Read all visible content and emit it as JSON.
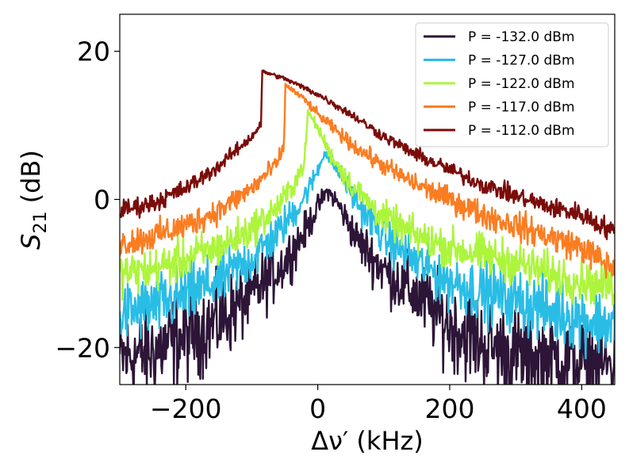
{
  "chart_data": {
    "type": "line",
    "title": "",
    "xlabel": "Δν′ (kHz)",
    "ylabel": "S21 (dB)",
    "ylabel_main": "S",
    "ylabel_sub": "21",
    "ylabel_rest": " (dB)",
    "xlim": [
      -300,
      450
    ],
    "ylim": [
      -25,
      25
    ],
    "xticks": [
      -200,
      0,
      200,
      400
    ],
    "yticks": [
      -20,
      0,
      20
    ],
    "xtick_labels": [
      "−200",
      "0",
      "200",
      "400"
    ],
    "ytick_labels": [
      "−20",
      "0",
      "20"
    ],
    "grid": false,
    "legend_position": "top-right",
    "series": [
      {
        "name": "P = -132.0 dBm",
        "color": "#2d1537",
        "noise": 2.2,
        "x": [
          -300,
          -250,
          -200,
          -150,
          -100,
          -50,
          -20,
          0,
          15,
          30,
          60,
          100,
          150,
          200,
          250,
          300,
          350,
          400,
          450
        ],
        "y": [
          -21.5,
          -20.5,
          -18.5,
          -16.5,
          -13,
          -8.5,
          -4.5,
          -1,
          1.2,
          -0.5,
          -5.5,
          -9.5,
          -13,
          -17,
          -19.5,
          -21,
          -21.5,
          -22,
          -22.5
        ]
      },
      {
        "name": "P = -127.0 dBm",
        "color": "#29bde6",
        "noise": 1.5,
        "x": [
          -300,
          -250,
          -200,
          -150,
          -100,
          -60,
          -30,
          -10,
          5,
          10,
          30,
          60,
          100,
          150,
          200,
          250,
          300,
          350,
          400,
          450
        ],
        "y": [
          -15.5,
          -14.5,
          -13,
          -11,
          -8,
          -4.5,
          -1,
          2,
          5,
          6.5,
          4,
          -0.5,
          -5,
          -8.5,
          -11,
          -12.5,
          -13.5,
          -15,
          -16,
          -17
        ]
      },
      {
        "name": "P = -122.0 dBm",
        "color": "#adf53d",
        "noise": 1.0,
        "x": [
          -300,
          -250,
          -200,
          -150,
          -100,
          -60,
          -40,
          -20,
          -15,
          -5,
          20,
          50,
          100,
          150,
          200,
          250,
          300,
          350,
          400,
          450
        ],
        "y": [
          -10,
          -9.5,
          -8,
          -6.5,
          -4,
          -1,
          1.5,
          5,
          11.8,
          10.5,
          6,
          2,
          -2.5,
          -5,
          -6.5,
          -7.5,
          -8.5,
          -10,
          -11,
          -12
        ]
      },
      {
        "name": "P = -117.0 dBm",
        "color": "#fb7d22",
        "noise": 0.7,
        "x": [
          -300,
          -250,
          -200,
          -150,
          -100,
          -60,
          -51,
          -49,
          -20,
          0,
          50,
          100,
          150,
          200,
          250,
          300,
          350,
          400,
          450
        ],
        "y": [
          -6,
          -5,
          -3.5,
          -1.5,
          1.5,
          5,
          7.5,
          15.5,
          13.5,
          11.5,
          7.5,
          4.5,
          2,
          0,
          -2,
          -3.5,
          -5,
          -6.5,
          -9.5
        ]
      },
      {
        "name": "P = -112.0 dBm",
        "color": "#7a0c0a",
        "noise": 0.5,
        "x": [
          -300,
          -250,
          -200,
          -150,
          -100,
          -86,
          -84,
          -50,
          0,
          50,
          100,
          150,
          200,
          250,
          300,
          350,
          400,
          450
        ],
        "y": [
          -1.5,
          -0.5,
          1.5,
          4.5,
          8.5,
          10.2,
          17.3,
          16.3,
          14.2,
          11.5,
          8.5,
          6,
          4,
          2,
          0.5,
          -1,
          -2,
          -4.5
        ]
      }
    ]
  }
}
